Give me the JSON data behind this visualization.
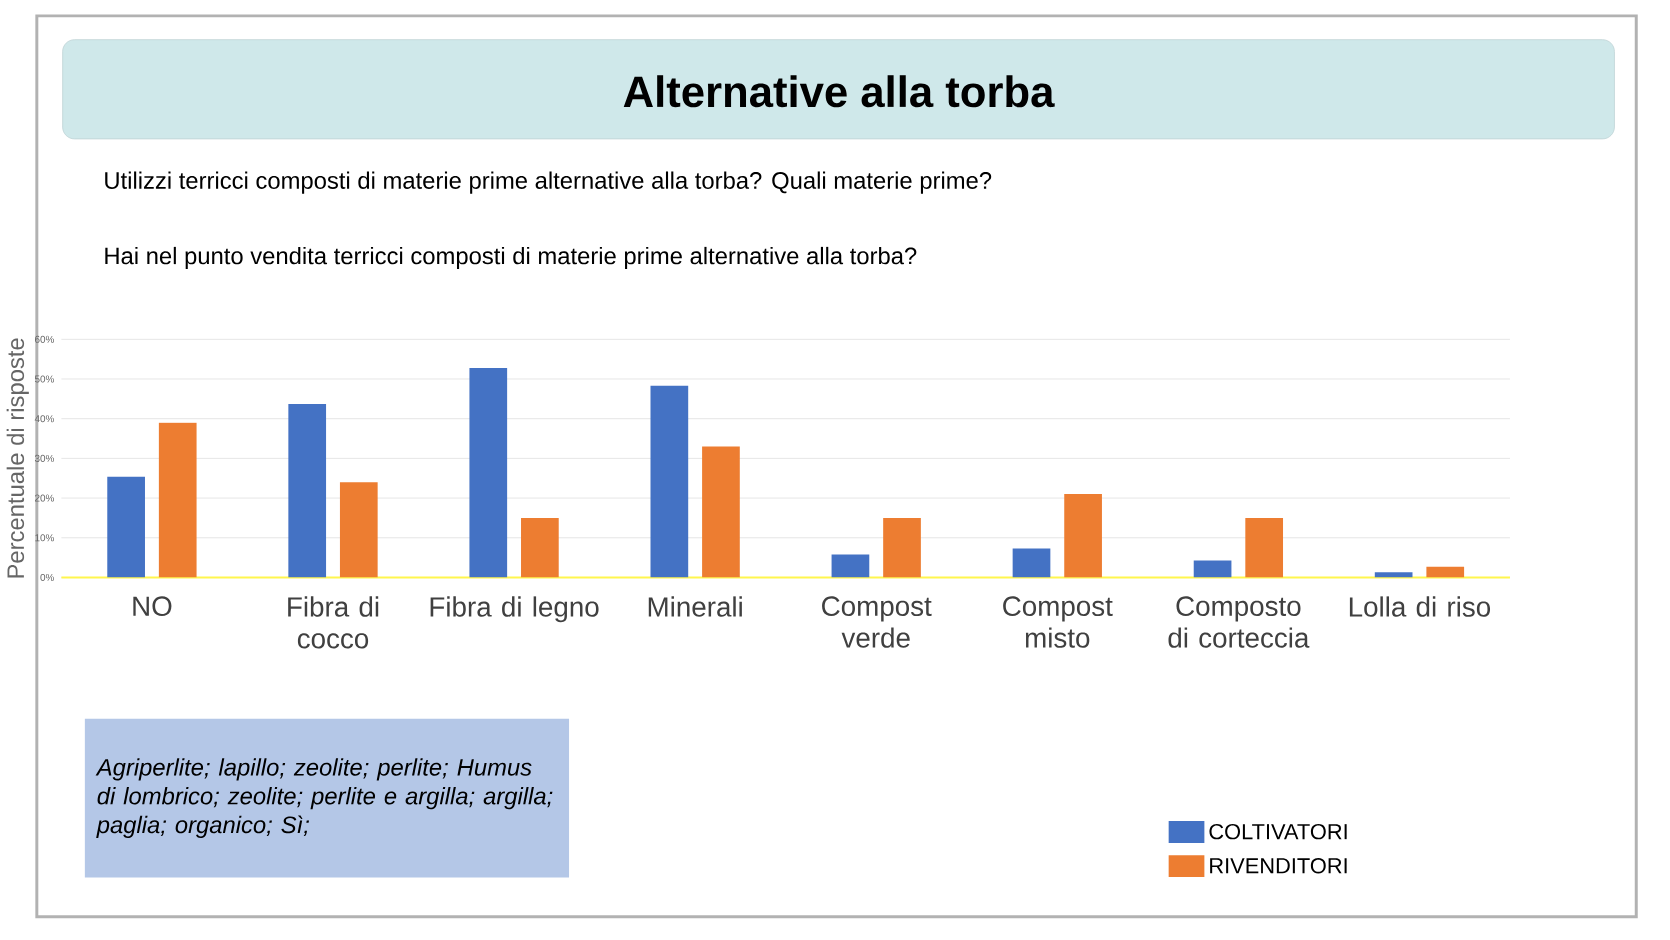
{
  "chart_data": {
    "type": "bar",
    "title": "Alternative alla torba",
    "subtitle": "Utilizzi terricci composti di materie prime alternative alla torba? Quali materie prime?",
    "annotations": [
      "Hai nel punto vendita terricci composti di materie prime alternative alla torba?",
      "Agriperlite; lapillo; zeolite; perlite; Humus di lombrico; zeolite; perlite e argilla; argilla; paglia; organico; Sì;"
    ],
    "ylabel": "Percentuale di risposte",
    "categories": [
      "NO",
      "Fibra di cocco",
      "Fibra di legno",
      "Minerali",
      "Compost verde",
      "Compost misto",
      "Composto di corteccia",
      "Lolla di riso"
    ],
    "series": [
      {
        "name": "COLTIVATORI",
        "color": "#4472c4",
        "values": [
          25.4,
          43.7,
          52.8,
          48.3,
          5.8,
          7.3,
          4.3,
          1.3
        ]
      },
      {
        "name": "RIVENDITORI",
        "color": "#ed7d31",
        "values": [
          39,
          24,
          15,
          33,
          15,
          21,
          15,
          2.7
        ]
      }
    ],
    "ylim": [
      0,
      60
    ],
    "yticks": [
      {
        "value": 0,
        "label": "0%"
      },
      {
        "value": 10,
        "label": "10%"
      },
      {
        "value": 20,
        "label": "20%"
      },
      {
        "value": 30,
        "label": "30%"
      },
      {
        "value": 40,
        "label": "40%"
      },
      {
        "value": 50,
        "label": "50%"
      },
      {
        "value": 60,
        "label": "60%"
      }
    ],
    "grid": "y",
    "legend": "bottom right"
  }
}
